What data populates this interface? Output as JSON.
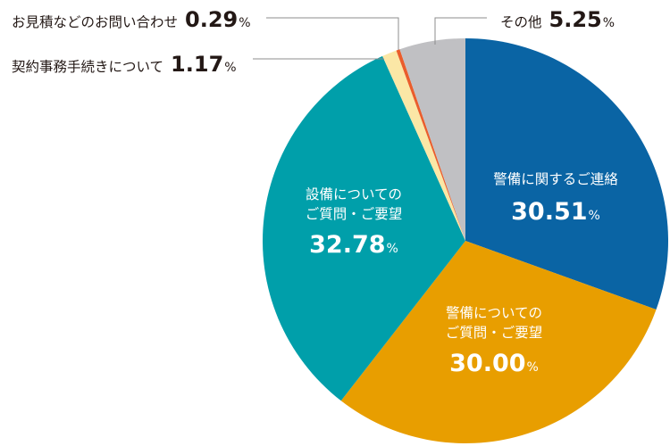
{
  "chart_data": {
    "type": "pie",
    "title": "",
    "slices": [
      {
        "key": "security_contact",
        "label_lines": [
          "警備に関するご連絡"
        ],
        "value": 30.51,
        "value_text": "30.51",
        "unit": "%",
        "color": "#0a64a4",
        "text_color": "#ffffff"
      },
      {
        "key": "security_questions",
        "label_lines": [
          "警備についての",
          "ご質問・ご要望"
        ],
        "value": 30.0,
        "value_text": "30.00",
        "unit": "%",
        "color": "#e89e00",
        "text_color": "#ffffff"
      },
      {
        "key": "equipment_questions",
        "label_lines": [
          "設備についての",
          "ご質問・ご要望"
        ],
        "value": 32.78,
        "value_text": "32.78",
        "unit": "%",
        "color": "#009faa",
        "text_color": "#ffffff"
      },
      {
        "key": "contract_procedures",
        "label_lines": [
          "契約事務手続きについて"
        ],
        "value": 1.17,
        "value_text": "1.17",
        "unit": "%",
        "color": "#fbe7a6",
        "text_color": "#231815"
      },
      {
        "key": "estimate_inquiries",
        "label_lines": [
          "お見積などのお問い合わせ"
        ],
        "value": 0.29,
        "value_text": "0.29",
        "unit": "%",
        "color": "#ea5d2c",
        "text_color": "#231815"
      },
      {
        "key": "other",
        "label_lines": [
          "その他"
        ],
        "value": 5.25,
        "value_text": "5.25",
        "unit": "%",
        "color": "#c0c0c3",
        "text_color": "#231815"
      }
    ]
  }
}
